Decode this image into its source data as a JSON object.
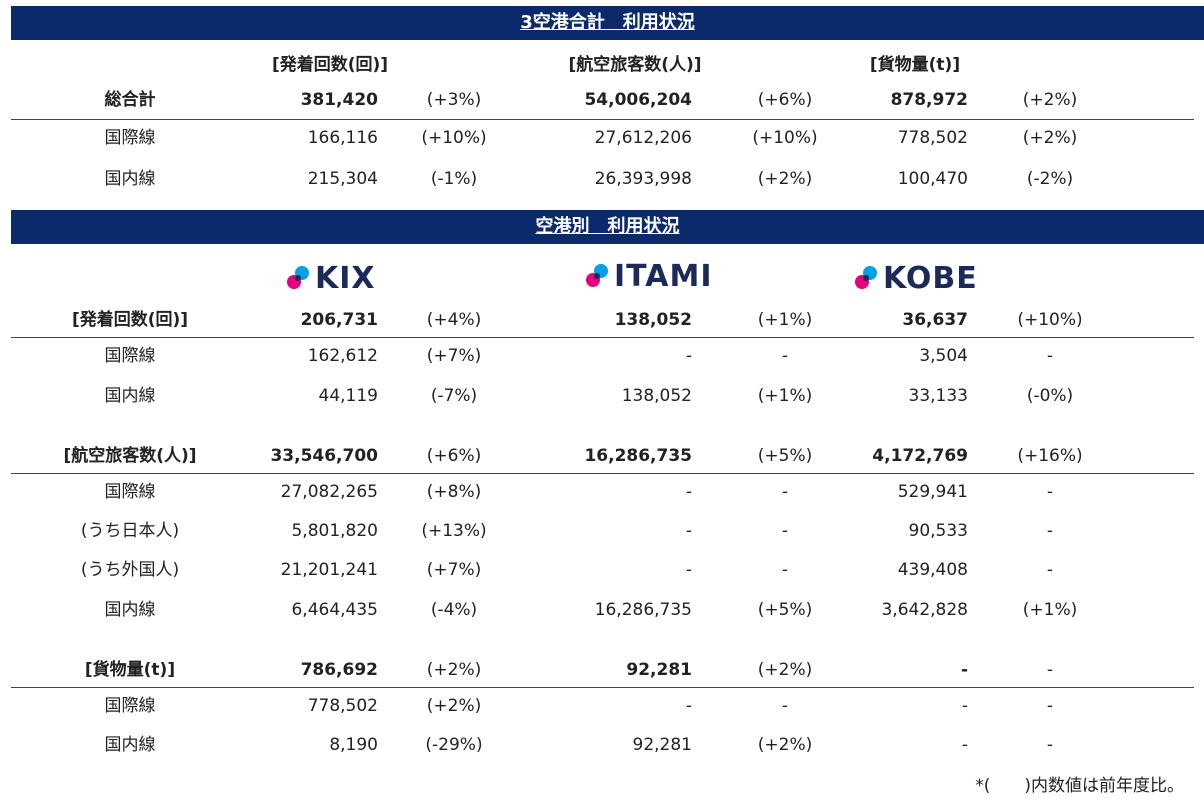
{
  "sections": {
    "total_title": "3空港合計　利用状況",
    "airport_title": "空港別　利用状況"
  },
  "total": {
    "headers": [
      "[発着回数(回)]",
      "[航空旅客数(人)]",
      "[貨物量(t)]"
    ],
    "rows": [
      {
        "label": "総合計",
        "bold": true,
        "cells": [
          "381,420",
          "(+3%)",
          "54,006,204",
          "(+6%)",
          "878,972",
          "(+2%)"
        ]
      },
      {
        "label": "国際線",
        "bold": false,
        "cells": [
          "166,116",
          "(+10%)",
          "27,612,206",
          "(+10%)",
          "778,502",
          "(+2%)"
        ]
      },
      {
        "label": "国内線",
        "bold": false,
        "cells": [
          "215,304",
          "(-1%)",
          "26,393,998",
          "(+2%)",
          "100,470",
          "(-2%)"
        ]
      }
    ]
  },
  "airports": {
    "logos": [
      "KIX",
      "ITAMI",
      "KOBE"
    ],
    "logo_colors": {
      "navy": "#1c2a5a",
      "magenta": "#e6007e",
      "cyan": "#00a0e9"
    }
  },
  "airport_rows": [
    {
      "label": "[発着回数(回)]",
      "bold": true,
      "cells": [
        "206,731",
        "(+4%)",
        "138,052",
        "(+1%)",
        "36,637",
        "(+10%)"
      ]
    },
    {
      "label": "国際線",
      "bold": false,
      "cells": [
        "162,612",
        "(+7%)",
        "-",
        "-",
        "3,504",
        "-"
      ]
    },
    {
      "label": "国内線",
      "bold": false,
      "cells": [
        "44,119",
        "(-7%)",
        "138,052",
        "(+1%)",
        "33,133",
        "(-0%)"
      ]
    },
    {
      "label": "[航空旅客数(人)]",
      "bold": true,
      "cells": [
        "33,546,700",
        "(+6%)",
        "16,286,735",
        "(+5%)",
        "4,172,769",
        "(+16%)"
      ]
    },
    {
      "label": "国際線",
      "bold": false,
      "cells": [
        "27,082,265",
        "(+8%)",
        "-",
        "-",
        "529,941",
        "-"
      ]
    },
    {
      "label": "(うち日本人)",
      "bold": false,
      "cells": [
        "5,801,820",
        "(+13%)",
        "-",
        "-",
        "90,533",
        "-"
      ]
    },
    {
      "label": "(うち外国人)",
      "bold": false,
      "cells": [
        "21,201,241",
        "(+7%)",
        "-",
        "-",
        "439,408",
        "-"
      ]
    },
    {
      "label": "国内線",
      "bold": false,
      "cells": [
        "6,464,435",
        "(-4%)",
        "16,286,735",
        "(+5%)",
        "3,642,828",
        "(+1%)"
      ]
    },
    {
      "label": "[貨物量(t)]",
      "bold": true,
      "cells": [
        "786,692",
        "(+2%)",
        "92,281",
        "(+2%)",
        "-",
        "-"
      ]
    },
    {
      "label": "国際線",
      "bold": false,
      "cells": [
        "778,502",
        "(+2%)",
        "-",
        "-",
        "-",
        "-"
      ]
    },
    {
      "label": "国内線",
      "bold": false,
      "cells": [
        "8,190",
        "(-29%)",
        "92,281",
        "(+2%)",
        "-",
        "-"
      ]
    }
  ],
  "footnote": "*(　　)内数値は前年度比。"
}
